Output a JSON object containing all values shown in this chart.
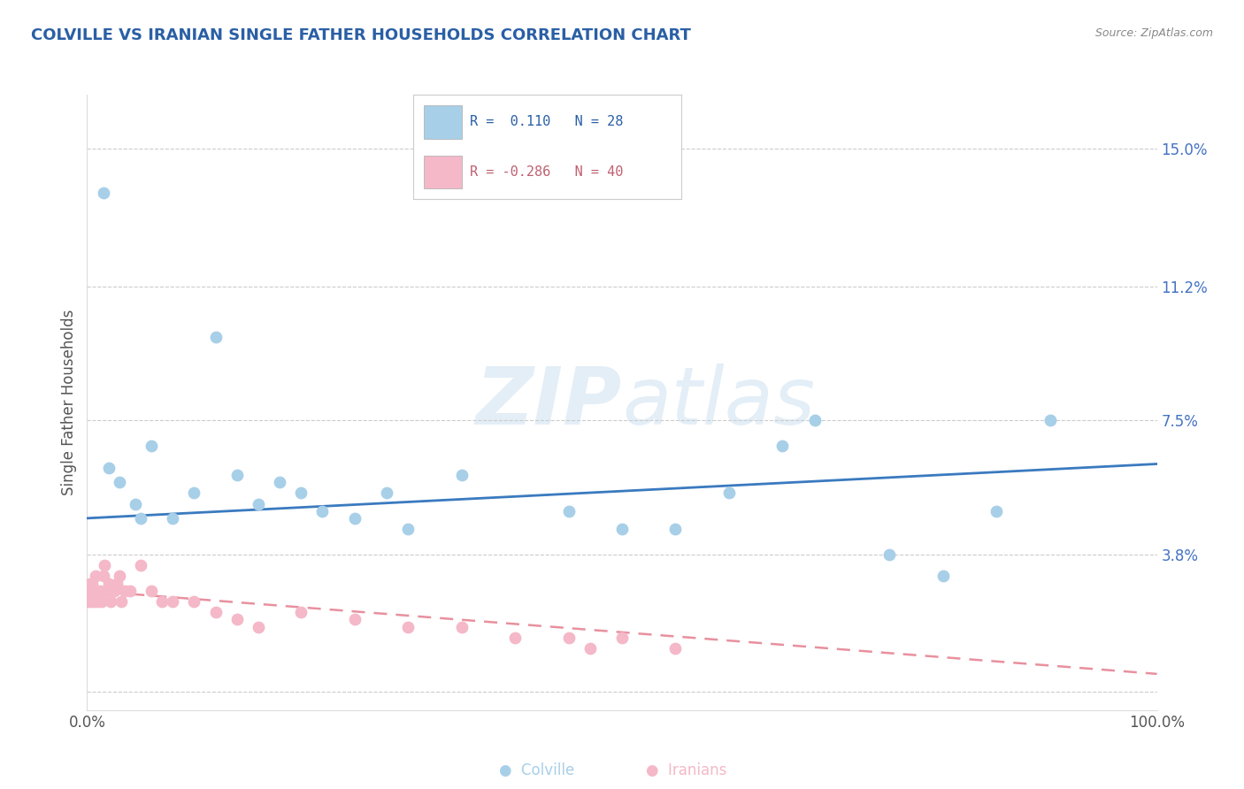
{
  "title": "COLVILLE VS IRANIAN SINGLE FATHER HOUSEHOLDS CORRELATION CHART",
  "source": "Source: ZipAtlas.com",
  "ylabel": "Single Father Households",
  "xlim": [
    0,
    100
  ],
  "ylim": [
    -0.5,
    16.5
  ],
  "ytick_positions": [
    0,
    3.8,
    7.5,
    11.2,
    15.0
  ],
  "ytick_labels": [
    "",
    "3.8%",
    "7.5%",
    "11.2%",
    "15.0%"
  ],
  "xtick_positions": [
    0,
    100
  ],
  "xtick_labels": [
    "0.0%",
    "100.0%"
  ],
  "colville_color": "#a8cfe8",
  "iranians_color": "#f4b8c8",
  "colville_line_color": "#3a7abf",
  "iranians_line_color": "#e8909e",
  "watermark_zip": "ZIP",
  "watermark_atlas": "atlas",
  "colville_x": [
    1.5,
    2.0,
    3.0,
    4.5,
    5.0,
    6.0,
    8.0,
    10.0,
    12.0,
    14.0,
    16.0,
    18.0,
    20.0,
    22.0,
    25.0,
    28.0,
    30.0,
    35.0,
    45.0,
    50.0,
    55.0,
    60.0,
    65.0,
    68.0,
    75.0,
    80.0,
    85.0,
    90.0
  ],
  "colville_y": [
    13.8,
    6.2,
    5.8,
    5.2,
    4.8,
    6.8,
    4.8,
    5.5,
    9.8,
    6.0,
    5.2,
    5.8,
    5.5,
    5.0,
    4.8,
    5.5,
    4.5,
    6.0,
    5.0,
    4.5,
    4.5,
    5.5,
    6.8,
    7.5,
    3.8,
    3.2,
    5.0,
    7.5
  ],
  "iranians_x": [
    0.1,
    0.2,
    0.3,
    0.4,
    0.5,
    0.6,
    0.7,
    0.8,
    0.9,
    1.0,
    1.2,
    1.4,
    1.5,
    1.6,
    1.8,
    2.0,
    2.2,
    2.5,
    2.8,
    3.0,
    3.2,
    3.5,
    4.0,
    5.0,
    6.0,
    7.0,
    8.0,
    10.0,
    12.0,
    14.0,
    16.0,
    20.0,
    25.0,
    30.0,
    35.0,
    40.0,
    45.0,
    47.0,
    50.0,
    55.0
  ],
  "iranians_y": [
    2.5,
    3.0,
    2.8,
    2.5,
    3.0,
    2.8,
    2.5,
    3.2,
    2.8,
    2.5,
    2.8,
    2.5,
    3.2,
    3.5,
    2.8,
    3.0,
    2.5,
    2.8,
    3.0,
    3.2,
    2.5,
    2.8,
    2.8,
    3.5,
    2.8,
    2.5,
    2.5,
    2.5,
    2.2,
    2.0,
    1.8,
    2.2,
    2.0,
    1.8,
    1.8,
    1.5,
    1.5,
    1.2,
    1.5,
    1.2
  ],
  "colville_regression": [
    4.8,
    6.3
  ],
  "iranians_regression": [
    2.8,
    0.5
  ]
}
